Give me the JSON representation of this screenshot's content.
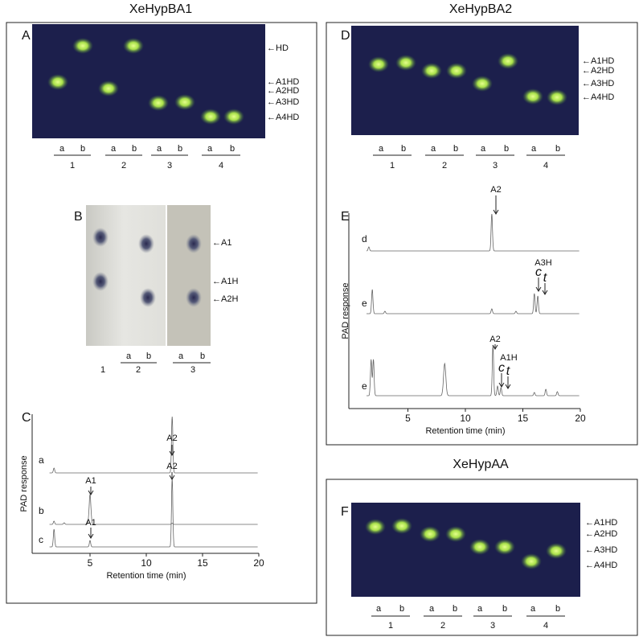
{
  "titles": [
    "XeHypBA1",
    "XeHypBA2",
    "XeHypAA"
  ],
  "panel_a": {
    "letter": "A",
    "labels": [
      "←HD",
      "←A1HD",
      "←A2HD",
      "←A3HD",
      "←A4HD"
    ],
    "lane_letters": [
      "a",
      "b",
      "a",
      "b",
      "a",
      "b",
      "a",
      "b"
    ],
    "lane_numbers": [
      "1",
      "2",
      "3",
      "4"
    ]
  },
  "panel_b": {
    "letter": "B",
    "labels": [
      "←A1",
      "←A1H",
      "←A2H"
    ],
    "lane_letters": [
      "a",
      "b",
      "a",
      "b"
    ],
    "lane_numbers": [
      "1",
      "2",
      "3"
    ]
  },
  "panel_c": {
    "letter": "C",
    "y_label": "PAD response",
    "x_label": "Retention time (min)",
    "x_tick_labels": [
      "5",
      "10",
      "15",
      "20"
    ],
    "traces": [
      {
        "label": "a",
        "peaks": [
          "A2"
        ]
      },
      {
        "label": "b",
        "peaks": [
          "A1"
        ]
      },
      {
        "label": "c",
        "peaks": [
          "A1",
          "A2"
        ]
      }
    ]
  },
  "panel_d": {
    "letter": "D",
    "labels": [
      "←A1HD",
      "←A2HD",
      "←A3HD",
      "←A4HD"
    ],
    "lane_letters": [
      "a",
      "b",
      "a",
      "b",
      "a",
      "b",
      "a",
      "b"
    ],
    "lane_numbers": [
      "1",
      "2",
      "3",
      "4"
    ]
  },
  "panel_e": {
    "letter": "E",
    "y_label": "PAD response",
    "x_label": "Retention time (min)",
    "x_tick_labels": [
      "5",
      "10",
      "15",
      "20"
    ],
    "traces": [
      {
        "label": "d",
        "peaks": [
          "A2"
        ]
      },
      {
        "label": "e",
        "peaks": [
          "A3H",
          "c",
          "t"
        ]
      },
      {
        "label": "e",
        "peaks": [
          "A2",
          "A1H",
          "c",
          "t"
        ]
      }
    ]
  },
  "panel_f": {
    "letter": "F",
    "labels": [
      "←A1HD",
      "←A2HD",
      "←A3HD",
      "←A4HD"
    ],
    "lane_letters": [
      "a",
      "b",
      "a",
      "b",
      "a",
      "b",
      "a",
      "b"
    ],
    "lane_numbers": [
      "1",
      "2",
      "3",
      "4"
    ]
  }
}
